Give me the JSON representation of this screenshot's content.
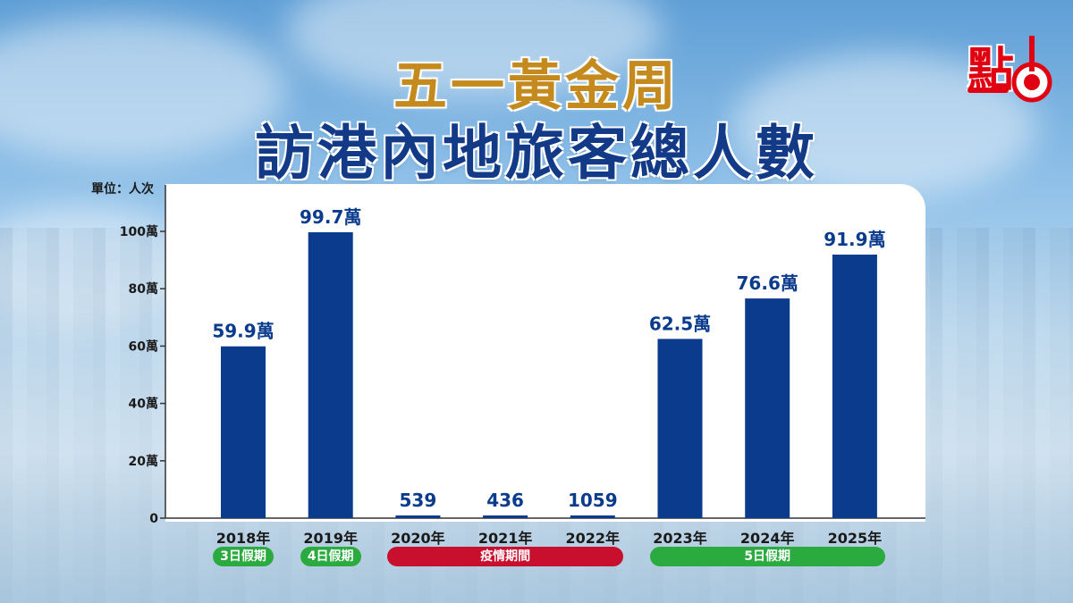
{
  "title_line1": "五一黃金周",
  "title_line2": "訪港內地旅客總人數",
  "unit_label": "單位：人次",
  "logo_text": "點",
  "colors": {
    "bar": "#0b3b8c",
    "value_label": "#0b3b8c",
    "title1": "#c48a1e",
    "title2": "#123a86",
    "green_pill": "#2bab3f",
    "red_pill": "#c8102e"
  },
  "period_labels": [
    {
      "text": "3日假期",
      "color": "green",
      "from": 0,
      "to": 0
    },
    {
      "text": "4日假期",
      "color": "green",
      "from": 1,
      "to": 1
    },
    {
      "text": "疫情期間",
      "color": "red",
      "from": 2,
      "to": 4
    },
    {
      "text": "5日假期",
      "color": "green",
      "from": 5,
      "to": 7
    }
  ],
  "chart_data": {
    "type": "bar",
    "title": "五一黃金周 訪港內地旅客總人數",
    "ylabel": "單位：人次",
    "categories": [
      "2018年",
      "2019年",
      "2020年",
      "2021年",
      "2022年",
      "2023年",
      "2024年",
      "2025年"
    ],
    "values": [
      599000,
      997000,
      539,
      436,
      1059,
      625000,
      766000,
      919000
    ],
    "data_labels": [
      "59.9萬",
      "99.7萬",
      "539",
      "436",
      "1059",
      "62.5萬",
      "76.6萬",
      "91.9萬"
    ],
    "ylim": [
      0,
      1000000
    ],
    "yticks": [
      0,
      200000,
      400000,
      600000,
      800000,
      1000000
    ],
    "ytick_labels": [
      "0",
      "20萬",
      "40萬",
      "60萬",
      "80萬",
      "100萬"
    ],
    "grid": false,
    "legend": "none"
  }
}
